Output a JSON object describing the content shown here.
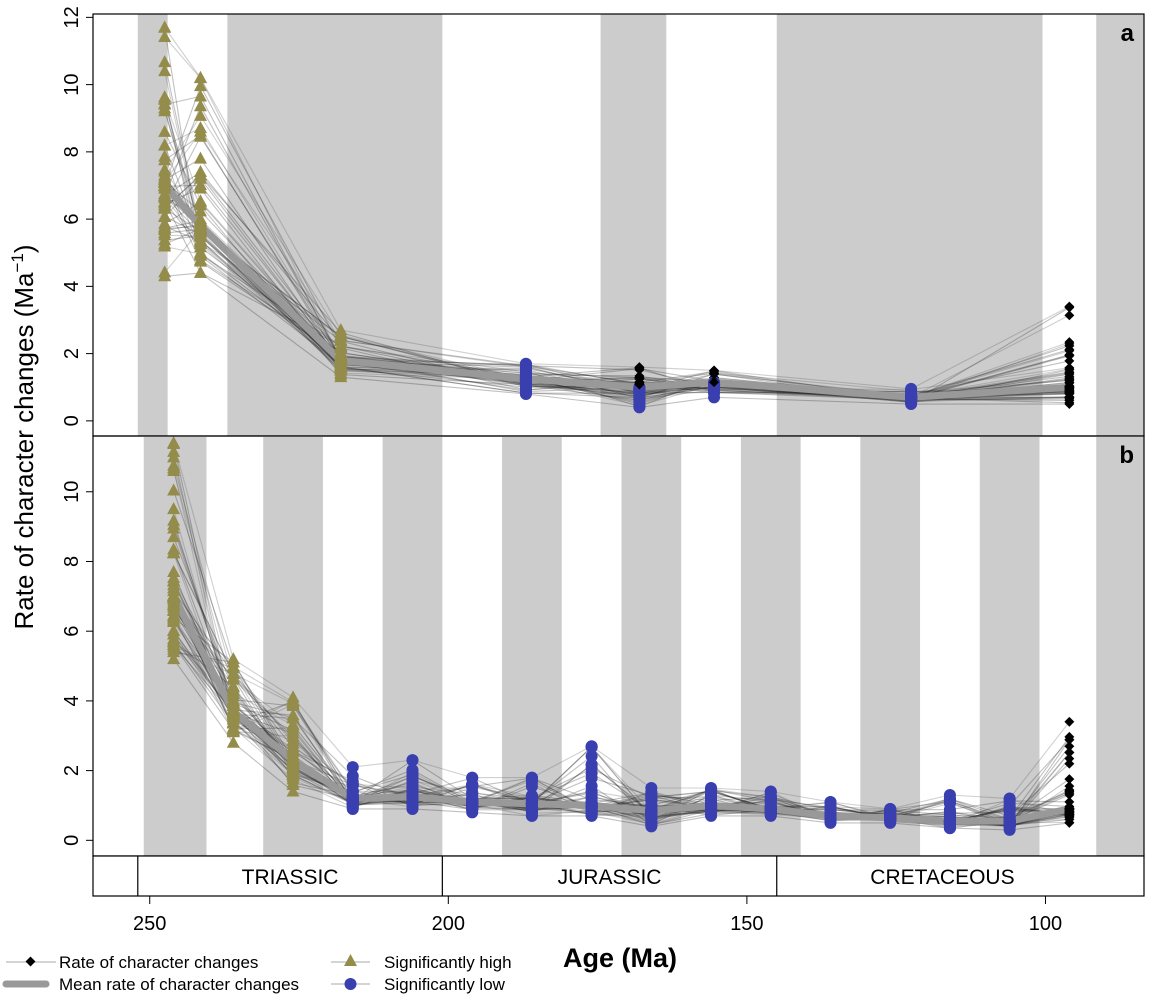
{
  "y_axis_label": "Rate of character changes (Ma",
  "y_axis_label_sup": "−1",
  "y_axis_label_end": ")",
  "x_axis_label": "Age (Ma)",
  "periods": [
    "TRIASSIC",
    "JURASSIC",
    "CRETACEOUS"
  ],
  "legend": {
    "rate": "Rate of character changes",
    "mean": "Mean rate of character changes",
    "high": "Significantly high",
    "low": "Significantly low"
  },
  "colors": {
    "high": "#938c4a",
    "low": "#3a3fb0",
    "mean": "#999999",
    "shade": "#cccccc"
  },
  "chart_data": [
    {
      "type": "line",
      "panel": "a",
      "xlabel": "Age (Ma)",
      "ylabel": "Rate of character changes (Ma−1)",
      "xlim": [
        259.5,
        83.5
      ],
      "ylim": [
        -0.45,
        12.1
      ],
      "xticks": [
        250,
        200,
        150,
        100
      ],
      "yticks": [
        0,
        2,
        4,
        6,
        8,
        10,
        12
      ],
      "shaded_intervals": [
        [
          252,
          247
        ],
        [
          237,
          201
        ],
        [
          174.5,
          163.5
        ],
        [
          145,
          100.5
        ],
        [
          91.5,
          83.5
        ]
      ],
      "x": [
        247.5,
        241.5,
        218,
        187,
        168,
        155.5,
        122.5,
        96
      ],
      "mean": [
        7.0,
        5.8,
        1.8,
        1.25,
        1.0,
        1.15,
        0.7,
        1.0
      ],
      "range_low": [
        4.3,
        4.4,
        1.3,
        0.8,
        0.4,
        0.7,
        0.5,
        0.5
      ],
      "range_high": [
        11.7,
        10.2,
        2.7,
        1.7,
        1.6,
        1.5,
        0.95,
        3.4
      ],
      "significance": [
        "high",
        "high",
        "high",
        "low",
        "mixed",
        "mixed",
        "low",
        "none"
      ]
    },
    {
      "type": "line",
      "panel": "b",
      "xlabel": "Age (Ma)",
      "ylabel": "Rate of character changes (Ma−1)",
      "xlim": [
        259.5,
        83.5
      ],
      "ylim": [
        -0.45,
        11.6
      ],
      "xticks": [
        250,
        200,
        150,
        100
      ],
      "yticks": [
        0,
        2,
        4,
        6,
        8,
        10
      ],
      "shaded_intervals": [
        [
          251,
          240.5
        ],
        [
          231,
          221
        ],
        [
          211,
          201
        ],
        [
          191,
          181
        ],
        [
          171,
          161
        ],
        [
          151,
          141
        ],
        [
          131,
          121
        ],
        [
          111,
          101
        ],
        [
          91.5,
          83.5
        ]
      ],
      "x": [
        246,
        236,
        226,
        216,
        206,
        196,
        186,
        176,
        166,
        156,
        146,
        136,
        126,
        116,
        106,
        96
      ],
      "mean": [
        7.0,
        3.7,
        2.3,
        1.2,
        1.25,
        1.1,
        1.05,
        1.0,
        0.85,
        1.0,
        0.9,
        0.7,
        0.65,
        0.55,
        0.55,
        0.9
      ],
      "range_low": [
        5.2,
        2.8,
        1.4,
        0.9,
        0.9,
        0.8,
        0.7,
        0.7,
        0.4,
        0.7,
        0.7,
        0.5,
        0.5,
        0.35,
        0.3,
        0.5
      ],
      "range_high": [
        11.4,
        5.2,
        4.1,
        2.1,
        2.3,
        1.8,
        1.8,
        2.7,
        1.5,
        1.5,
        1.4,
        1.1,
        0.9,
        1.3,
        1.2,
        3.4
      ],
      "significance": [
        "high",
        "high",
        "high",
        "low",
        "low",
        "low",
        "low",
        "low",
        "low",
        "low",
        "low",
        "low",
        "low",
        "low",
        "low",
        "none"
      ]
    }
  ]
}
